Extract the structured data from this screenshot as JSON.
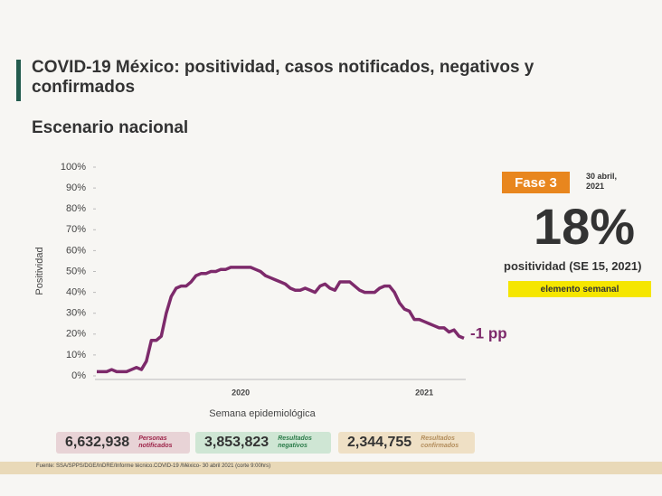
{
  "header": {
    "title": "COVID-19 México: positividad, casos notificados, negativos y confirmados",
    "subtitle": "Escenario nacional"
  },
  "chart_data": {
    "type": "line",
    "y_label": "Positividad",
    "x_label": "Semana epidemiológica",
    "annotation": "-1 pp",
    "color": "#7d2a6b",
    "categories": [
      null,
      null,
      null,
      null,
      null,
      null,
      null,
      null,
      null,
      null,
      null,
      null,
      null,
      null,
      null,
      null,
      null,
      null,
      null,
      null,
      null,
      null,
      null,
      null,
      null,
      null,
      null,
      null,
      null,
      "2020",
      null,
      null,
      null,
      null,
      null,
      null,
      null,
      null,
      null,
      null,
      null,
      null,
      null,
      null,
      null,
      null,
      null,
      null,
      null,
      null,
      null,
      null,
      null,
      null,
      null,
      null,
      null,
      null,
      null,
      null,
      null,
      null,
      null,
      null,
      null,
      null,
      "2021",
      null,
      null,
      null,
      null,
      null,
      null,
      null,
      null
    ],
    "values": [
      2,
      2,
      2,
      3,
      2,
      2,
      2,
      3,
      4,
      3,
      7,
      17,
      17,
      19,
      30,
      38,
      42,
      43,
      43,
      45,
      48,
      49,
      49,
      50,
      50,
      51,
      51,
      52,
      52,
      52,
      52,
      52,
      51,
      50,
      48,
      47,
      46,
      45,
      44,
      42,
      41,
      41,
      42,
      41,
      40,
      43,
      44,
      42,
      41,
      45,
      45,
      45,
      43,
      41,
      40,
      40,
      40,
      42,
      43,
      43,
      40,
      35,
      32,
      31,
      27,
      27,
      26,
      25,
      24,
      23,
      23,
      21,
      22,
      19,
      18
    ],
    "ylim": [
      0,
      100
    ],
    "yticks": [
      {
        "value": 0,
        "label": "0%"
      },
      {
        "value": 10,
        "label": "10%"
      },
      {
        "value": 20,
        "label": "20%"
      },
      {
        "value": 30,
        "label": "30%"
      },
      {
        "value": 40,
        "label": "40%"
      },
      {
        "value": 50,
        "label": "50%"
      },
      {
        "value": 60,
        "label": "60%"
      },
      {
        "value": 70,
        "label": "70%"
      },
      {
        "value": 80,
        "label": "80%"
      },
      {
        "value": 90,
        "label": "90%"
      },
      {
        "value": 100,
        "label": "100%"
      }
    ]
  },
  "panel": {
    "phase": "Fase 3",
    "date": "30 abril, 2021",
    "big_value": "18%",
    "caption": "positividad (SE 15, 2021)",
    "tag": "elemento semanal"
  },
  "summary": [
    {
      "value": "6,632,938",
      "label": "Personas notificados"
    },
    {
      "value": "3,853,823",
      "label": "Resultados negativos"
    },
    {
      "value": "2,344,755",
      "label": "Resultados confirmados"
    }
  ],
  "footer": "Fuente: SSA/SPPS/DGE/InDRE/Informe técnico.COVID-19 /México- 30 abril 2021 (corte 9:00hrs)"
}
